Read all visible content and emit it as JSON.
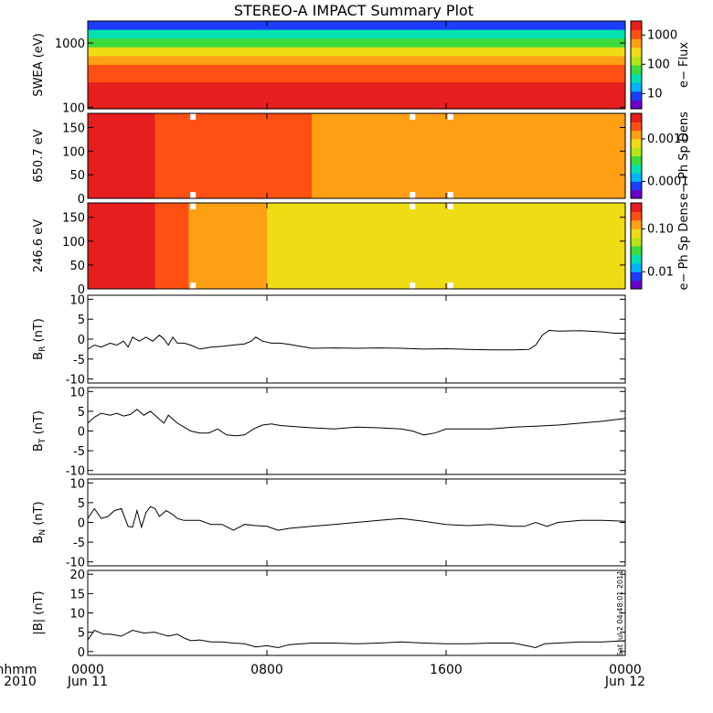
{
  "title": "STEREO-A IMPACT Summary Plot",
  "footer": {
    "left_line1": "hhmm",
    "left_line2": "2010",
    "date_start": "Jun 11",
    "date_end": "Jun 12",
    "stamp": "Sat Jul  2 04:48:01 2011"
  },
  "x_axis": {
    "ticks": [
      "0000",
      "0800",
      "1600",
      "0000"
    ],
    "range_hours": [
      0,
      24
    ],
    "tick_hours": [
      0,
      8,
      16,
      24
    ]
  },
  "colormap": [
    "#6a00c8",
    "#1c3cff",
    "#00b4ff",
    "#00e0b0",
    "#3cdc3c",
    "#b4e614",
    "#f0dc14",
    "#ffa014",
    "#ff5014",
    "#e61e1e"
  ],
  "chart_data": [
    {
      "type": "heatmap",
      "ylabel": "SWEA (eV)",
      "ylog": true,
      "yticks": [
        "1000",
        "100"
      ],
      "ytick_values": [
        1000,
        100
      ],
      "ylim": [
        95,
        2200
      ],
      "colorbar_label": "e− Flux",
      "colorbar_ticks": [
        "1000",
        "100",
        "10"
      ],
      "colorbar_tick_values": [
        1000,
        100,
        10
      ],
      "colorbar_range": [
        3,
        3000
      ],
      "colorbar_log": true,
      "gaps_hours": [],
      "levels": [
        [
          2200,
          10
        ],
        [
          1500,
          25
        ],
        [
          1000,
          80
        ],
        [
          700,
          200
        ],
        [
          500,
          400
        ],
        [
          350,
          800
        ],
        [
          250,
          1400
        ],
        [
          180,
          2200
        ],
        [
          130,
          2800
        ],
        [
          95,
          2500
        ]
      ]
    },
    {
      "type": "heatmap",
      "ylabel": "650.7 eV",
      "yticks": [
        "150",
        "100",
        "50",
        "0"
      ],
      "ytick_values": [
        150,
        100,
        50,
        0
      ],
      "ylim": [
        0,
        180
      ],
      "colorbar_label": "e− Ph Sp Dens",
      "colorbar_ticks": [
        "0.0010",
        "0.0001"
      ],
      "colorbar_tick_values": [
        0.001,
        0.0001
      ],
      "colorbar_range": [
        4e-05,
        0.004
      ],
      "colorbar_log": true,
      "gaps_hours": [
        4.7,
        14.5,
        16.2
      ],
      "profile": [
        [
          0,
          0.003
        ],
        [
          2,
          0.0028
        ],
        [
          4,
          0.0022
        ],
        [
          6,
          0.0018
        ],
        [
          10,
          0.0016
        ],
        [
          14,
          0.0014
        ],
        [
          16,
          0.0012
        ],
        [
          20,
          0.0011
        ],
        [
          24,
          0.001
        ]
      ]
    },
    {
      "type": "heatmap",
      "ylabel": "246.6 eV",
      "yticks": [
        "150",
        "100",
        "50",
        "0"
      ],
      "ytick_values": [
        150,
        100,
        50,
        0
      ],
      "ylim": [
        0,
        180
      ],
      "colorbar_label": "e− Ph Sp Dens",
      "colorbar_ticks": [
        "0.10",
        "0.01"
      ],
      "colorbar_tick_values": [
        0.1,
        0.01
      ],
      "colorbar_range": [
        0.004,
        0.4
      ],
      "colorbar_log": true,
      "gaps_hours": [
        4.7,
        14.5,
        16.2
      ],
      "profile": [
        [
          0,
          0.3
        ],
        [
          2,
          0.28
        ],
        [
          4,
          0.22
        ],
        [
          5,
          0.12
        ],
        [
          8,
          0.1
        ],
        [
          12,
          0.09
        ],
        [
          16,
          0.08
        ],
        [
          20,
          0.075
        ],
        [
          24,
          0.07
        ]
      ]
    },
    {
      "type": "line",
      "ylabel": "B",
      "ylabel_sub": "R",
      "ylabel_unit": "(nT)",
      "yticks": [
        "10",
        "5",
        "0",
        "-5",
        "-10"
      ],
      "ytick_values": [
        10,
        5,
        0,
        -5,
        -10
      ],
      "ylim": [
        -11,
        11
      ],
      "series": [
        {
          "x": [
            0,
            0.3,
            0.6,
            1.0,
            1.3,
            1.6,
            1.8,
            2.0,
            2.3,
            2.6,
            2.9,
            3.2,
            3.4,
            3.6,
            3.8,
            4.0,
            4.3,
            4.6,
            5.0,
            5.5,
            6.0,
            6.5,
            7.0,
            7.3,
            7.5,
            7.8,
            8.2,
            8.6,
            9.0,
            9.5,
            10.0,
            11,
            12,
            13,
            14,
            15,
            16,
            17,
            18,
            19,
            19.7,
            20.0,
            20.3,
            20.6,
            21,
            22,
            23,
            23.5,
            24
          ],
          "y": [
            -2.5,
            -1.5,
            -2.0,
            -1.0,
            -1.5,
            -0.5,
            -2.0,
            0.5,
            -0.5,
            0.5,
            -0.5,
            1.0,
            0,
            -1.5,
            0.5,
            -1.0,
            -1.0,
            -1.5,
            -2.5,
            -2.0,
            -1.8,
            -1.5,
            -1.2,
            -0.5,
            0.5,
            -0.5,
            -1.0,
            -1.0,
            -1.3,
            -1.8,
            -2.3,
            -2.2,
            -2.3,
            -2.2,
            -2.3,
            -2.5,
            -2.4,
            -2.6,
            -2.7,
            -2.7,
            -2.6,
            -1.5,
            1.0,
            2.2,
            2.0,
            2.1,
            1.8,
            1.5,
            1.5
          ]
        }
      ]
    },
    {
      "type": "line",
      "ylabel": "B",
      "ylabel_sub": "T",
      "ylabel_unit": "(nT)",
      "yticks": [
        "10",
        "5",
        "0",
        "-5",
        "-10"
      ],
      "ytick_values": [
        10,
        5,
        0,
        -5,
        -10
      ],
      "ylim": [
        -11,
        11
      ],
      "series": [
        {
          "x": [
            0,
            0.3,
            0.6,
            1.0,
            1.3,
            1.6,
            1.9,
            2.2,
            2.5,
            2.8,
            3.1,
            3.4,
            3.6,
            3.8,
            4.0,
            4.3,
            4.6,
            5.0,
            5.4,
            5.8,
            6.2,
            6.6,
            7.0,
            7.4,
            7.8,
            8.2,
            8.6,
            9.0,
            10,
            11,
            12,
            13,
            14,
            14.5,
            15,
            15.5,
            16,
            17,
            18,
            19,
            20,
            21,
            22,
            23,
            24
          ],
          "y": [
            2.0,
            3.5,
            4.5,
            4.0,
            4.5,
            3.8,
            4.2,
            5.5,
            4.0,
            5.0,
            3.5,
            2.0,
            4.0,
            3.0,
            2.0,
            1.0,
            0,
            -0.5,
            -0.5,
            0.5,
            -1.0,
            -1.2,
            -1.0,
            0.5,
            1.5,
            1.8,
            1.4,
            1.2,
            0.8,
            0.5,
            1.0,
            0.8,
            0.5,
            0,
            -1.0,
            -0.5,
            0.5,
            0.5,
            0.5,
            1.0,
            1.2,
            1.5,
            2.0,
            2.5,
            3.2
          ]
        }
      ]
    },
    {
      "type": "line",
      "ylabel": "B",
      "ylabel_sub": "N",
      "ylabel_unit": "(nT)",
      "yticks": [
        "10",
        "5",
        "0",
        "-5",
        "-10"
      ],
      "ytick_values": [
        10,
        5,
        0,
        -5,
        -10
      ],
      "ylim": [
        -11,
        11
      ],
      "series": [
        {
          "x": [
            0,
            0.3,
            0.6,
            0.9,
            1.2,
            1.5,
            1.8,
            2.0,
            2.2,
            2.4,
            2.6,
            2.8,
            3.0,
            3.2,
            3.5,
            3.8,
            4.0,
            4.3,
            4.6,
            5.0,
            5.5,
            6.0,
            6.5,
            7.0,
            7.5,
            8.0,
            8.5,
            9.0,
            10,
            11,
            12,
            13,
            14,
            15,
            16,
            17,
            18,
            19,
            19.5,
            20,
            20.5,
            21,
            22,
            23,
            24
          ],
          "y": [
            1.0,
            3.5,
            1.0,
            1.5,
            3.0,
            3.5,
            -1.0,
            -1.2,
            3.0,
            -1.2,
            2.5,
            4.0,
            3.5,
            1.5,
            3.0,
            2.0,
            1.0,
            0.5,
            0.5,
            0.5,
            -0.5,
            -0.5,
            -2.0,
            -0.5,
            -0.8,
            -1.0,
            -2.0,
            -1.5,
            -1.0,
            -0.5,
            0,
            0.5,
            1.0,
            0.3,
            -0.5,
            -0.8,
            -0.5,
            -1.0,
            -1.0,
            0,
            -1.0,
            0,
            0.5,
            0.5,
            0.3
          ]
        }
      ]
    },
    {
      "type": "line",
      "ylabel": "|B|",
      "ylabel_unit": "(nT)",
      "yticks": [
        "20",
        "15",
        "10",
        "5",
        "0"
      ],
      "ytick_values": [
        20,
        15,
        10,
        5,
        0
      ],
      "ylim": [
        -1,
        21
      ],
      "series": [
        {
          "x": [
            0,
            0.3,
            0.7,
            1.0,
            1.5,
            2.0,
            2.5,
            3.0,
            3.3,
            3.6,
            4.0,
            4.3,
            4.6,
            5.0,
            5.5,
            6.0,
            6.5,
            7.0,
            7.5,
            8.0,
            8.5,
            9.0,
            10,
            11,
            12,
            13,
            14,
            15,
            16,
            17,
            18,
            19,
            19.6,
            20.0,
            20.4,
            21,
            22,
            23,
            24
          ],
          "y": [
            3.0,
            5.5,
            4.5,
            4.5,
            4.0,
            5.5,
            4.8,
            5.0,
            4.5,
            4.0,
            4.5,
            3.5,
            2.8,
            3.0,
            2.5,
            2.5,
            2.2,
            2.0,
            1.2,
            1.5,
            1.0,
            1.8,
            2.2,
            2.2,
            2.0,
            2.2,
            2.5,
            2.2,
            2.0,
            2.0,
            2.2,
            2.2,
            1.5,
            1.0,
            2.0,
            2.2,
            2.5,
            2.5,
            2.8
          ]
        }
      ]
    }
  ]
}
